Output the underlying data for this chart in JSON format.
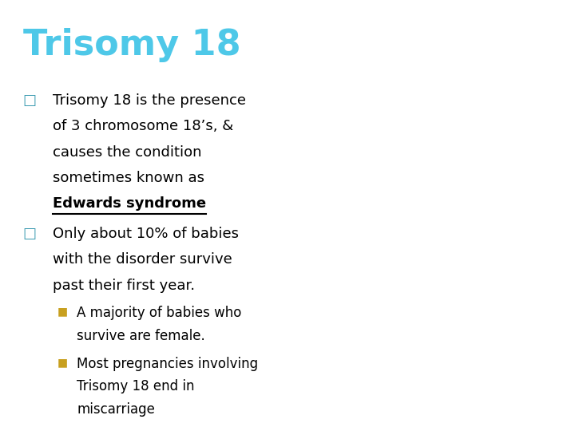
{
  "title": "Trisomy 18",
  "title_color": "#4EC8E8",
  "title_bg_color": "#000000",
  "body_bg_color": "#ffffff",
  "title_fontsize": 32,
  "bullet1_marker": "□",
  "bullet1_text_lines": [
    "Trisomy 18 is the presence",
    "of 3 chromosome 18’s, &",
    "causes the condition",
    "sometimes known as"
  ],
  "bullet1_underline": "Edwards syndrome",
  "bullet2_marker": "□",
  "bullet2_text_lines": [
    "Only about 10% of babies",
    "with the disorder survive",
    "past their first year."
  ],
  "sub_bullet_color": "#C8A020",
  "sub_bullet1_lines": [
    "A majority of babies who",
    "survive are female."
  ],
  "sub_bullet2_lines": [
    "Most pregnancies involving",
    "Trisomy 18 end in",
    "miscarriage"
  ],
  "body_fontsize": 13,
  "marker_color": "#3A9AB0"
}
